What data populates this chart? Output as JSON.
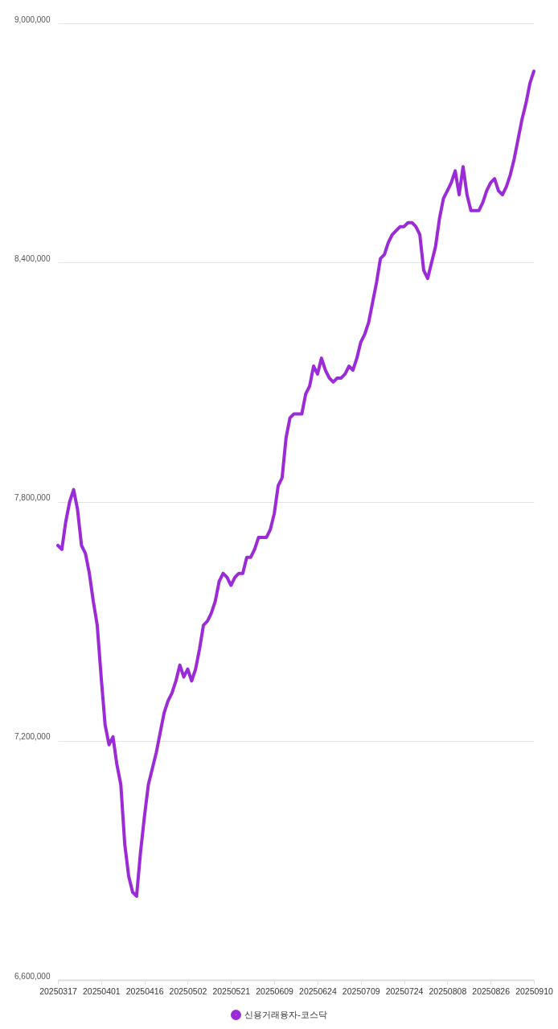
{
  "chart_data": {
    "type": "line",
    "categories": [
      "20250317",
      null,
      null,
      null,
      null,
      null,
      null,
      null,
      null,
      null,
      null,
      "20250401",
      null,
      null,
      null,
      null,
      null,
      null,
      null,
      null,
      null,
      null,
      "20250416",
      null,
      null,
      null,
      null,
      null,
      null,
      null,
      null,
      null,
      null,
      "20250502",
      null,
      null,
      null,
      null,
      null,
      null,
      null,
      null,
      null,
      null,
      "20250521",
      null,
      null,
      null,
      null,
      null,
      null,
      null,
      null,
      null,
      null,
      "20250609",
      null,
      null,
      null,
      null,
      null,
      null,
      null,
      null,
      null,
      null,
      "20250624",
      null,
      null,
      null,
      null,
      null,
      null,
      null,
      null,
      null,
      null,
      "20250709",
      null,
      null,
      null,
      null,
      null,
      null,
      null,
      null,
      null,
      null,
      "20250724",
      null,
      null,
      null,
      null,
      null,
      null,
      null,
      null,
      null,
      null,
      "20250808",
      null,
      null,
      null,
      null,
      null,
      null,
      null,
      null,
      null,
      null,
      "20250826",
      null,
      null,
      null,
      null,
      null,
      null,
      null,
      null,
      null,
      null,
      "20250910"
    ],
    "series": [
      {
        "name": "신용거래융자-코스닥",
        "color": "#9b2bd6",
        "values": [
          7690000,
          7680000,
          7750000,
          7800000,
          7830000,
          7780000,
          7690000,
          7670000,
          7620000,
          7550000,
          7490000,
          7360000,
          7240000,
          7190000,
          7210000,
          7140000,
          7090000,
          6940000,
          6860000,
          6820000,
          6810000,
          6920000,
          7010000,
          7090000,
          7130000,
          7170000,
          7220000,
          7270000,
          7300000,
          7320000,
          7350000,
          7390000,
          7360000,
          7380000,
          7350000,
          7380000,
          7430000,
          7490000,
          7500000,
          7520000,
          7550000,
          7600000,
          7620000,
          7610000,
          7590000,
          7610000,
          7620000,
          7620000,
          7660000,
          7660000,
          7680000,
          7710000,
          7710000,
          7710000,
          7730000,
          7770000,
          7840000,
          7860000,
          7960000,
          8010000,
          8020000,
          8020000,
          8020000,
          8070000,
          8090000,
          8140000,
          8120000,
          8160000,
          8130000,
          8110000,
          8100000,
          8110000,
          8110000,
          8120000,
          8140000,
          8130000,
          8160000,
          8200000,
          8220000,
          8250000,
          8300000,
          8350000,
          8410000,
          8420000,
          8450000,
          8470000,
          8480000,
          8490000,
          8490000,
          8500000,
          8500000,
          8490000,
          8470000,
          8380000,
          8360000,
          8400000,
          8440000,
          8510000,
          8560000,
          8580000,
          8600000,
          8630000,
          8570000,
          8640000,
          8570000,
          8530000,
          8530000,
          8530000,
          8550000,
          8580000,
          8600000,
          8610000,
          8580000,
          8570000,
          8590000,
          8620000,
          8660000,
          8710000,
          8760000,
          8800000,
          8850000,
          8880000
        ]
      }
    ],
    "ylim": [
      6600000,
      9000000
    ],
    "yticks": [
      {
        "value": 6600000,
        "label": "6,600,000"
      },
      {
        "value": 7200000,
        "label": "7,200,000"
      },
      {
        "value": 7800000,
        "label": "7,800,000"
      },
      {
        "value": 8400000,
        "label": "8,400,000"
      },
      {
        "value": 9000000,
        "label": "9,000,000"
      }
    ],
    "grid": "y",
    "legend": "bottom",
    "marker": "none",
    "line_style": "solid"
  }
}
